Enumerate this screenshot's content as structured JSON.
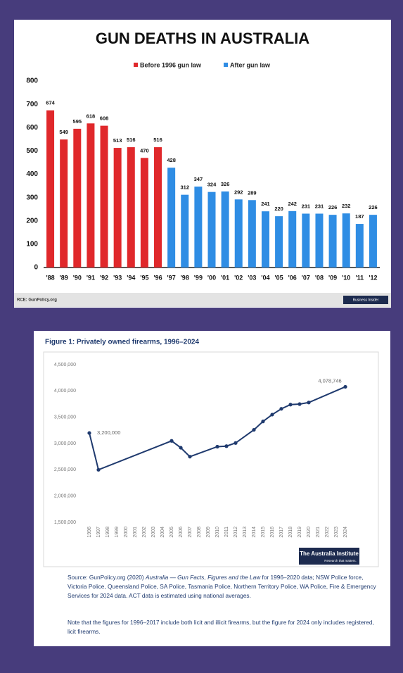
{
  "chart_data": [
    {
      "type": "bar",
      "title": "GUN DEATHS IN AUSTRALIA",
      "categories": [
        "'88",
        "'89",
        "'90",
        "'91",
        "'92",
        "'93",
        "'94",
        "'95",
        "'96",
        "'97",
        "'98",
        "'99",
        "'00",
        "'01",
        "'02",
        "'03",
        "'04",
        "'05",
        "'06",
        "'07",
        "'08",
        "'09",
        "'10",
        "'11",
        "'12"
      ],
      "series": [
        {
          "name": "Before 1996 gun law",
          "color": "#e0282b",
          "values": [
            674,
            549,
            595,
            618,
            608,
            513,
            516,
            470,
            516,
            null,
            null,
            null,
            null,
            null,
            null,
            null,
            null,
            null,
            null,
            null,
            null,
            null,
            null,
            null,
            null
          ]
        },
        {
          "name": "After gun law",
          "color": "#2f8de4",
          "values": [
            null,
            null,
            null,
            null,
            null,
            null,
            null,
            null,
            null,
            428,
            312,
            347,
            324,
            326,
            292,
            289,
            241,
            220,
            242,
            231,
            231,
            226,
            232,
            187,
            226
          ]
        }
      ],
      "ylim": [
        0,
        800
      ],
      "yticks": [
        0,
        100,
        200,
        300,
        400,
        500,
        600,
        700,
        800
      ],
      "grid": false,
      "legend": "top"
    },
    {
      "type": "line",
      "title": "Figure 1: Privately owned firearms, 1996–2024",
      "x": [
        1996,
        1997,
        2005,
        2006,
        2007,
        2010,
        2011,
        2012,
        2014,
        2015,
        2016,
        2017,
        2018,
        2019,
        2020,
        2024
      ],
      "values": [
        3200000,
        2500000,
        3050000,
        2920000,
        2750000,
        2940000,
        2950000,
        3010000,
        3260000,
        3420000,
        3550000,
        3660000,
        3740000,
        3750000,
        3780000,
        4078746
      ],
      "value_labels": [
        "3,200,000",
        null,
        null,
        null,
        null,
        null,
        null,
        null,
        null,
        null,
        null,
        null,
        null,
        null,
        null,
        "4,078,746"
      ],
      "color": "#1f3a6e",
      "xlim": [
        1996,
        2024
      ],
      "xticks": [
        1996,
        1997,
        1998,
        1999,
        2000,
        2001,
        2002,
        2003,
        2004,
        2005,
        2006,
        2007,
        2008,
        2009,
        2010,
        2011,
        2012,
        2013,
        2014,
        2015,
        2016,
        2017,
        2018,
        2019,
        2020,
        2021,
        2022,
        2023,
        2024
      ],
      "ylim": [
        1500000,
        4500000
      ],
      "yticks": [
        {
          "value": 1500000,
          "label": "1,500,000"
        },
        {
          "value": 2000000,
          "label": "2,000,000"
        },
        {
          "value": 2500000,
          "label": "2,500,000"
        },
        {
          "value": 3000000,
          "label": "3,000,000"
        },
        {
          "value": 3500000,
          "label": "3,500,000"
        },
        {
          "value": 4000000,
          "label": "4,000,000"
        },
        {
          "value": 4500000,
          "label": "4,500,000"
        }
      ],
      "grid": false
    }
  ],
  "top_footer": {
    "source": "RCE: GunPolicy.org",
    "logo": "Business Insider"
  },
  "bottom_footer": {
    "logo": "The Australia Institute",
    "logo_tagline": "Research that matters.",
    "source_parts": [
      "Source: GunPolicy.org (2020) ",
      "Australia — Gun Facts, Figures and the Law",
      " for 1996–2020 data; NSW Police force, Victoria Police, Queensland Police, SA Police, Tasmania Police, Northern Territory Police, WA Police, Fire & Emergency Services for 2024 data. ACT data is estimated using national averages."
    ],
    "note": "Note that the figures for 1996–2017 include both licit and illicit firearms, but the figure for 2024 only includes registered, licit firearms."
  }
}
